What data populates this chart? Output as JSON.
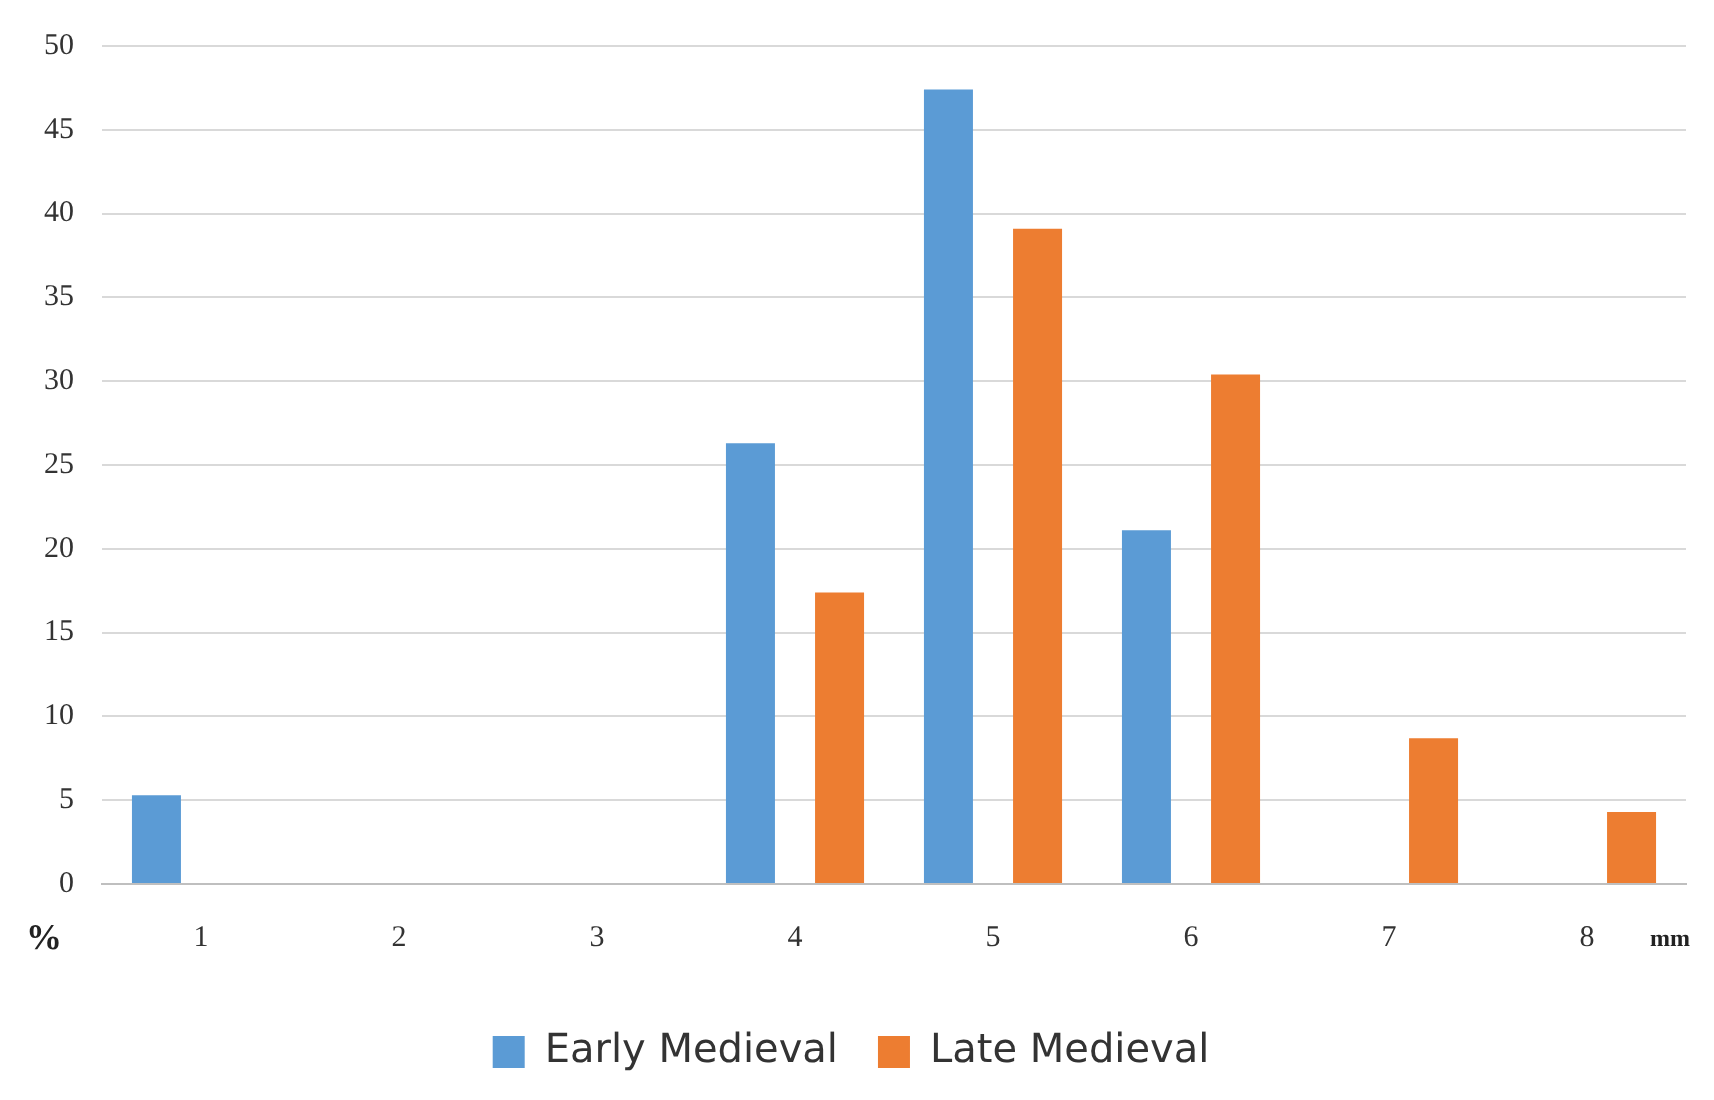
{
  "chart_data": {
    "type": "bar",
    "xlabel": "mm",
    "ylabel": "%",
    "categories": [
      "1",
      "2",
      "3",
      "4",
      "5",
      "6",
      "7",
      "8"
    ],
    "series": [
      {
        "name": "Early Medieval",
        "color": "#5b9bd5",
        "values": [
          5.3,
          null,
          null,
          26.3,
          47.4,
          21.1,
          null,
          null
        ]
      },
      {
        "name": "Late Medieval",
        "color": "#ed7d31",
        "values": [
          null,
          null,
          null,
          17.4,
          39.1,
          30.4,
          8.7,
          4.3
        ]
      }
    ],
    "ylim": [
      0,
      50
    ],
    "yticks": [
      0,
      5,
      10,
      15,
      20,
      25,
      30,
      35,
      40,
      45,
      50
    ],
    "grid": "y",
    "legend": "bottom"
  }
}
